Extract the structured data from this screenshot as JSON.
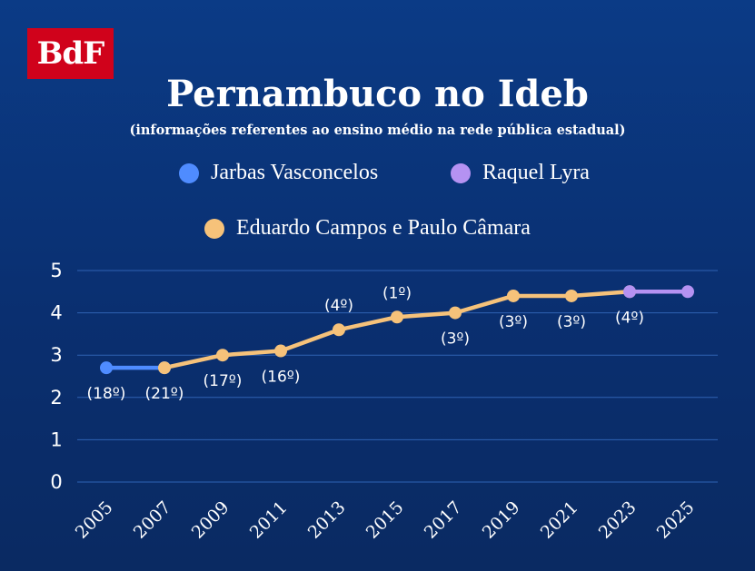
{
  "logo": {
    "text": "BdF"
  },
  "title": "Pernambuco no Ideb",
  "subtitle": "(informações referentes ao ensino médio na rede pública estadual)",
  "legend": [
    {
      "label": "Jarbas Vasconcelos",
      "color": "#4f8cff"
    },
    {
      "label": "Raquel Lyra",
      "color": "#b592f2"
    },
    {
      "label": "Eduardo Campos e Paulo Câmara",
      "color": "#f6c27a"
    }
  ],
  "colors": {
    "background": "#0a2f70",
    "grid": "#2f62b3"
  },
  "chart_data": {
    "type": "line",
    "title": "Pernambuco no Ideb",
    "xlabel": "",
    "ylabel": "",
    "ylim": [
      0,
      5
    ],
    "yticks": [
      0,
      1,
      2,
      3,
      4,
      5
    ],
    "x": [
      "2005",
      "2007",
      "2009",
      "2011",
      "2013",
      "2015",
      "2017",
      "2019",
      "2021",
      "2023",
      "2025"
    ],
    "series": [
      {
        "name": "Jarbas Vasconcelos",
        "color": "#4f8cff",
        "x": [
          "2005",
          "2007"
        ],
        "values": [
          2.7,
          2.7
        ]
      },
      {
        "name": "Eduardo Campos e Paulo Câmara",
        "color": "#f6c27a",
        "x": [
          "2007",
          "2009",
          "2011",
          "2013",
          "2015",
          "2017",
          "2019",
          "2021",
          "2023"
        ],
        "values": [
          2.7,
          3.0,
          3.1,
          3.6,
          3.9,
          4.0,
          4.4,
          4.4,
          4.5
        ]
      },
      {
        "name": "Raquel Lyra",
        "color": "#b592f2",
        "x": [
          "2023",
          "2025"
        ],
        "values": [
          4.5,
          4.5
        ]
      }
    ],
    "annotations": [
      {
        "x": "2005",
        "text": "(18º)",
        "position": "below"
      },
      {
        "x": "2007",
        "text": "(21º)",
        "position": "below"
      },
      {
        "x": "2009",
        "text": "(17º)",
        "position": "below"
      },
      {
        "x": "2011",
        "text": "(16º)",
        "position": "below"
      },
      {
        "x": "2013",
        "text": "(4º)",
        "position": "above"
      },
      {
        "x": "2015",
        "text": "(1º)",
        "position": "above"
      },
      {
        "x": "2017",
        "text": "(3º)",
        "position": "below"
      },
      {
        "x": "2019",
        "text": "(3º)",
        "position": "below"
      },
      {
        "x": "2021",
        "text": "(3º)",
        "position": "below"
      },
      {
        "x": "2023",
        "text": "(4º)",
        "position": "below"
      }
    ],
    "grid": true,
    "legend_position": "top"
  }
}
